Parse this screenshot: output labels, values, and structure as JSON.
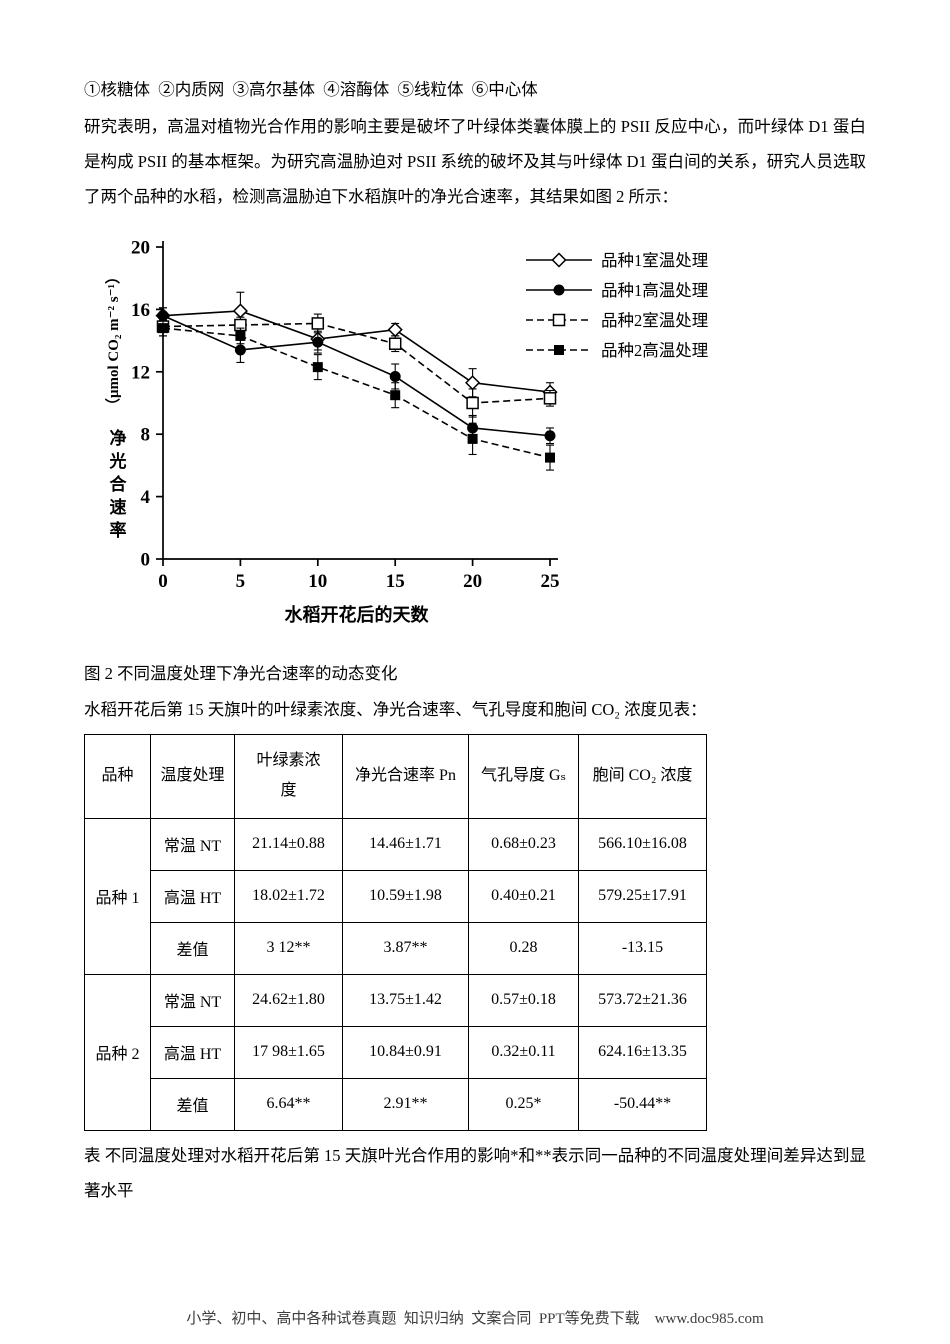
{
  "page": {
    "options_line": "①核糖体  ②内质网  ③高尔基体  ④溶酶体  ⑤线粒体  ⑥中心体",
    "paragraph": "研究表明，高温对植物光合作用的影响主要是破坏了叶绿体类囊体膜上的 PSII 反应中心，而叶绿体 D1 蛋白是构成 PSII 的基本框架。为研究高温胁迫对 PSII 系统的破坏及其与叶绿体 D1 蛋白间的关系，研究人员选取了两个品种的水稻，检测高温胁迫下水稻旗叶的净光合速率，其结果如图 2 所示：",
    "figure_caption": "图 2 不同温度处理下净光合速率的动态变化",
    "table_intro": "水稻开花后第 15 天旗叶的叶绿素浓度、净光合速率、气孔导度和胞间 CO₂ 浓度见表：",
    "table_caption": "表 不同温度处理对水稻开花后第 15 天旗叶光合作用的影响*和**表示同一品种的不同温度处理间差异达到显著水平",
    "footer": "小学、初中、高中各种试卷真题  知识归纳  文案合同  PPT等免费下载    www.doc985.com"
  },
  "chart_data": {
    "type": "line",
    "title": "",
    "x": [
      0,
      5,
      10,
      15,
      20,
      25
    ],
    "xticks": [
      0,
      5,
      10,
      15,
      20,
      25
    ],
    "yticks": [
      0,
      4,
      8,
      12,
      16,
      20
    ],
    "xlim": [
      0,
      25
    ],
    "ylim": [
      0,
      20
    ],
    "xlabel": "水稻开花后的天数",
    "ylabel": "净光合速率",
    "ylabel_unit": "（μmol CO₂ m⁻² s⁻¹）",
    "grid": false,
    "legend_position": "top-right",
    "series": [
      {
        "name": "品种1室温处理",
        "marker": "diamond-open",
        "dashed": false,
        "values": [
          15.6,
          15.9,
          14.1,
          14.7,
          11.3,
          10.7
        ],
        "errors": [
          0.5,
          1.2,
          0.7,
          0.4,
          0.9,
          0.6
        ]
      },
      {
        "name": "品种1高温处理",
        "marker": "circle-filled",
        "dashed": false,
        "values": [
          15.6,
          13.4,
          13.9,
          11.7,
          8.4,
          7.9
        ],
        "errors": [
          0.5,
          0.8,
          0.7,
          0.8,
          0.8,
          0.5
        ]
      },
      {
        "name": "品种2室温处理",
        "marker": "square-open",
        "dashed": true,
        "values": [
          14.9,
          15.0,
          15.1,
          13.8,
          10.0,
          10.3
        ],
        "errors": [
          0.6,
          0.5,
          0.6,
          0.5,
          0.9,
          0.5
        ]
      },
      {
        "name": "品种2高温处理",
        "marker": "square-filled",
        "dashed": true,
        "values": [
          14.8,
          14.3,
          12.3,
          10.5,
          7.7,
          6.5
        ],
        "errors": [
          0.5,
          0.5,
          0.8,
          0.8,
          1.0,
          0.8
        ]
      }
    ]
  },
  "table": {
    "headers": [
      "品种",
      "温度处理",
      "叶绿素浓\n度",
      "净光合速率 Pn",
      "气孔导度 Gₛ",
      "胞间 CO₂ 浓度"
    ],
    "groups": [
      {
        "name": "品种 1",
        "rows": [
          {
            "treatment": "常温 NT",
            "values": [
              "21.14±0.88",
              "14.46±1.71",
              "0.68±0.23",
              "566.10±16.08"
            ]
          },
          {
            "treatment": "高温 HT",
            "values": [
              "18.02±1.72",
              "10.59±1.98",
              "0.40±0.21",
              "579.25±17.91"
            ]
          },
          {
            "treatment": "差值",
            "values": [
              "3 12**",
              "3.87**",
              "0.28",
              "-13.15"
            ]
          }
        ]
      },
      {
        "name": "品种 2",
        "rows": [
          {
            "treatment": "常温 NT",
            "values": [
              "24.62±1.80",
              "13.75±1.42",
              "0.57±0.18",
              "573.72±21.36"
            ]
          },
          {
            "treatment": "高温 HT",
            "values": [
              "17 98±1.65",
              "10.84±0.91",
              "0.32±0.11",
              "624.16±13.35"
            ]
          },
          {
            "treatment": "差值",
            "values": [
              "6.64**",
              "2.91**",
              "0.25*",
              "-50.44**"
            ]
          }
        ]
      }
    ]
  }
}
